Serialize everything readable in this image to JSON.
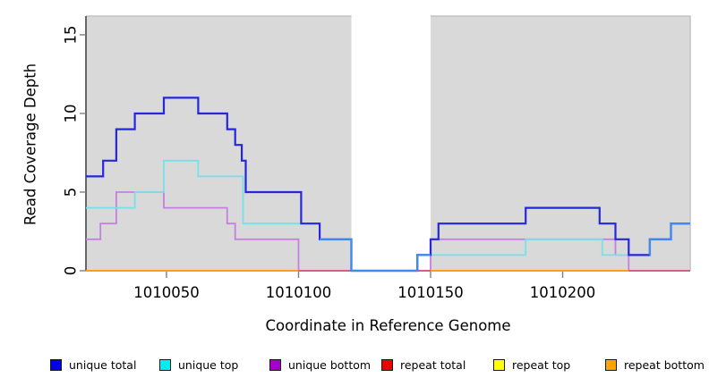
{
  "chart_data": {
    "type": "line",
    "subtype": "step-coverage-plot",
    "title": "",
    "xlabel": "Coordinate in Reference Genome",
    "ylabel": "Read Coverage Depth",
    "xlim": [
      1010019.5,
      1010248.3
    ],
    "ylim": [
      0,
      16.19
    ],
    "x_ticks": [
      1010050,
      1010100,
      1010150,
      1010200
    ],
    "y_ticks": [
      0,
      5,
      10,
      15
    ],
    "grid": false,
    "plot_bg_color": "#d9d9d9",
    "mask_region": {
      "x0": 1010120,
      "x1": 1010150,
      "color": "#ffffff"
    },
    "series": {
      "unique_total": {
        "label": "unique total",
        "legend_color": "#0000ee",
        "line_color": "#2526e0",
        "line_width": 2.2,
        "xend": 1010248.3,
        "points": [
          [
            1010019.5,
            6
          ],
          [
            1010026,
            7
          ],
          [
            1010031,
            9
          ],
          [
            1010038,
            10
          ],
          [
            1010049,
            11
          ],
          [
            1010062,
            10
          ],
          [
            1010073,
            9
          ],
          [
            1010076,
            8
          ],
          [
            1010078.5,
            7
          ],
          [
            1010080,
            5
          ],
          [
            1010101,
            3
          ],
          [
            1010108,
            2
          ],
          [
            1010120,
            0
          ],
          [
            1010145,
            1
          ],
          [
            1010150,
            2
          ],
          [
            1010153,
            3
          ],
          [
            1010186,
            4
          ],
          [
            1010214,
            3
          ],
          [
            1010220,
            2
          ],
          [
            1010225,
            1
          ],
          [
            1010233,
            2
          ],
          [
            1010241,
            3
          ]
        ]
      },
      "unique_top": {
        "label": "unique top",
        "legend_color": "#00eeee",
        "line_color": "#79dfe9",
        "line_width": 1.8,
        "xend": 1010248.3,
        "points": [
          [
            1010019.5,
            4
          ],
          [
            1010038,
            5
          ],
          [
            1010049,
            7
          ],
          [
            1010062,
            6
          ],
          [
            1010079,
            3
          ],
          [
            1010108,
            2
          ],
          [
            1010120,
            0
          ],
          [
            1010145,
            1
          ],
          [
            1010186,
            2
          ],
          [
            1010215,
            1
          ],
          [
            1010233,
            2
          ],
          [
            1010241,
            3
          ]
        ]
      },
      "unique_bottom": {
        "label": "unique bottom",
        "legend_color": "#a100cf",
        "line_color": "#c77fdf",
        "line_width": 1.8,
        "xend": 1010248.3,
        "points": [
          [
            1010019.5,
            2
          ],
          [
            1010025,
            3
          ],
          [
            1010031,
            5
          ],
          [
            1010049,
            4
          ],
          [
            1010073,
            3
          ],
          [
            1010076,
            2
          ],
          [
            1010100,
            0
          ],
          [
            1010150,
            2
          ],
          [
            1010220,
            1
          ],
          [
            1010225,
            0
          ]
        ]
      },
      "repeat_total": {
        "label": "repeat total",
        "legend_color": "#ee0000",
        "line_color": "#d45f8d",
        "line_width": 1.8,
        "xend": 1010248.3,
        "points": [
          [
            1010019.5,
            0
          ]
        ]
      },
      "repeat_top": {
        "label": "repeat top",
        "legend_color": "#ffff00",
        "line_color": "#ffff00",
        "line_width": 1.8,
        "xend": 1010248.3,
        "points": [
          [
            1010019.5,
            0
          ]
        ]
      },
      "repeat_bottom": {
        "label": "repeat bottom",
        "legend_color": "#ffa300",
        "line_color": "#ff9c1c",
        "line_width": 1.8,
        "xend": 1010248.3,
        "points": [
          [
            1010019.5,
            0
          ]
        ]
      }
    },
    "baseline_segments": [
      {
        "x0": 1010019.5,
        "x1": 1010100,
        "value": 0,
        "color": "#ff9c1c"
      },
      {
        "x0": 1010100,
        "x1": 1010150,
        "value": 0,
        "color": "#d45f8d"
      },
      {
        "x0": 1010150,
        "x1": 1010225,
        "value": 0,
        "color": "#ff9c1c"
      },
      {
        "x0": 1010225,
        "x1": 1010248.3,
        "value": 0,
        "color": "#d45f8d"
      }
    ],
    "overlap_blue_cyan_segments": [
      {
        "points": [
          [
            1010108,
            2
          ],
          [
            1010120,
            0
          ],
          [
            1010145,
            1
          ]
        ],
        "xend": 1010150
      },
      {
        "points": [
          [
            1010233,
            1
          ],
          [
            1010233.05,
            2
          ],
          [
            1010241,
            3
          ]
        ],
        "xend": 1010248.3
      }
    ],
    "overlap_color": "#3e8cf0",
    "legend_position": "bottom"
  },
  "legend_order": [
    "unique_total",
    "unique_top",
    "unique_bottom",
    "repeat_total",
    "repeat_top",
    "repeat_bottom"
  ]
}
